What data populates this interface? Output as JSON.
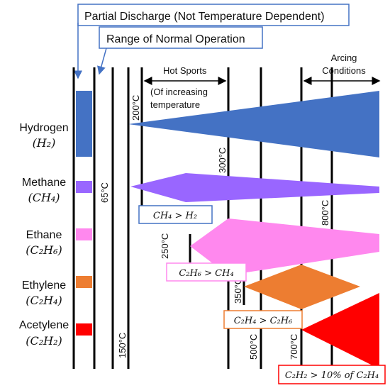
{
  "callouts": {
    "partial_discharge": "Partial Discharge (Not Temperature Dependent)",
    "normal_operation": "Range of Normal Operation"
  },
  "regions": {
    "hot_spots_title": "Hot Sports",
    "hot_spots_sub1": "(Of increasing",
    "hot_spots_sub2": "temperature",
    "arcing_line1": "Arcing",
    "arcing_line2": "Conditions"
  },
  "gases": [
    {
      "name": "Hydrogen",
      "formula": "(H₂)",
      "color": "#4472c4"
    },
    {
      "name": "Methane",
      "formula": "(CH₄)",
      "color": "#9966ff"
    },
    {
      "name": "Ethane",
      "formula": "(C₂H₆)",
      "color": "#ff88ee"
    },
    {
      "name": "Ethylene",
      "formula": "(C₂H₄)",
      "color": "#ed7d31"
    },
    {
      "name": "Acetylene",
      "formula": "(C₂H₂)",
      "color": "#ff0000"
    }
  ],
  "temperatures": {
    "t65": "65°C",
    "t150": "150°C",
    "t200": "200°C",
    "t250": "250°C",
    "t300": "300°C",
    "t350": "350°C",
    "t500": "500°C",
    "t700": "700°C",
    "t800": "800°C"
  },
  "ratio_labels": {
    "ch4_h2": "CH₄ > H₂",
    "c2h6_ch4": "C₂H₆ > CH₄",
    "c2h4_c2h6": "C₂H₄ > C₂H₆",
    "c2h2_c2h4": "C₂H₂ > 10% of C₂H₄"
  },
  "colors": {
    "callout_border": "#4472c4",
    "hydrogen": "#4472c4",
    "methane": "#9966ff",
    "ethane": "#ff88ee",
    "ethylene": "#ed7d31",
    "acetylene": "#ff0000"
  }
}
